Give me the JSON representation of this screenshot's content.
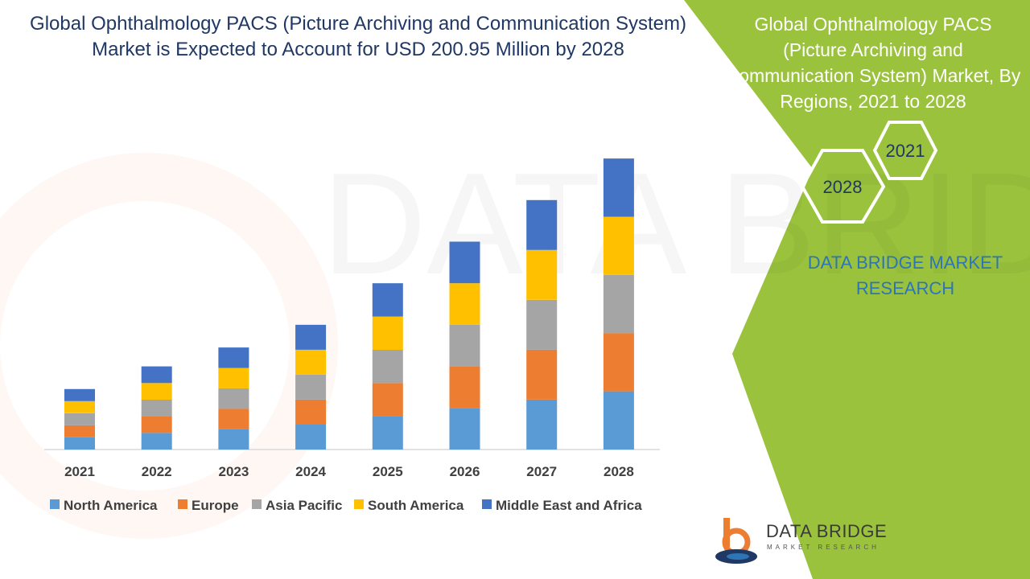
{
  "title": "Global Ophthalmology PACS (Picture Archiving and Communication System) Market is Expected to Account for USD 200.95 Million by 2028",
  "side_panel": {
    "title": "Global Ophthalmology PACS (Picture Archiving and Communication System) Market, By Regions, 2021 to 2028",
    "hex_top": "2021",
    "hex_bottom": "2028",
    "brand_text": "DATA BRIDGE MARKET RESEARCH",
    "logo_name": "DATA BRIDGE",
    "logo_sub": "MARKET RESEARCH",
    "accent_color": "#9ac23c"
  },
  "chart_data": {
    "type": "bar",
    "stacked": true,
    "categories": [
      "2021",
      "2022",
      "2023",
      "2024",
      "2025",
      "2026",
      "2027",
      "2028"
    ],
    "series": [
      {
        "name": "North America",
        "color": "#5b9bd5",
        "values": [
          16,
          22,
          27,
          33,
          44,
          55,
          66,
          77
        ]
      },
      {
        "name": "Europe",
        "color": "#ed7d31",
        "values": [
          16,
          22,
          27,
          33,
          44,
          55,
          66,
          77
        ]
      },
      {
        "name": "Asia Pacific",
        "color": "#a5a5a5",
        "values": [
          16,
          22,
          27,
          33,
          44,
          55,
          66,
          77
        ]
      },
      {
        "name": "South America",
        "color": "#ffc000",
        "values": [
          16,
          22,
          27,
          33,
          44,
          55,
          66,
          77
        ]
      },
      {
        "name": "Middle East and Africa",
        "color": "#4472c4",
        "values": [
          16,
          22,
          27,
          33,
          44,
          55,
          66,
          77
        ]
      }
    ],
    "ylim": [
      0,
      400
    ],
    "grid": false,
    "legend": "bottom"
  }
}
